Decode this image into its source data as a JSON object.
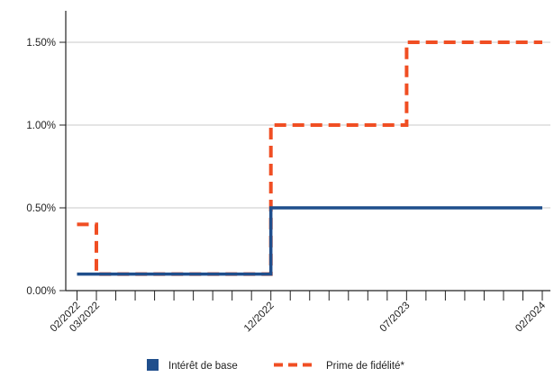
{
  "chart_data": {
    "type": "line",
    "y_unit": "%",
    "ylim": [
      0,
      1.65
    ],
    "y_ticks": [
      {
        "value": 0.0,
        "label": "0.00%"
      },
      {
        "value": 0.5,
        "label": "0.50%"
      },
      {
        "value": 1.0,
        "label": "1.00%"
      },
      {
        "value": 1.5,
        "label": "1.50%"
      }
    ],
    "x_range": [
      "2022-02",
      "2024-02"
    ],
    "x_tick_labels": [
      "02/2022",
      "03/2022",
      "12/2022",
      "07/2023",
      "02/2024"
    ],
    "grid": "horizontal",
    "series": [
      {
        "name": "Intérêt de base",
        "color": "#1f4e8c",
        "style": "solid",
        "step": true,
        "points": [
          {
            "x": "2022-02",
            "y": 0.1
          },
          {
            "x": "2022-12",
            "y": 0.1
          },
          {
            "x": "2022-12",
            "y": 0.5
          },
          {
            "x": "2024-02",
            "y": 0.5
          }
        ]
      },
      {
        "name": "Prime de fidélité*",
        "color": "#f04e23",
        "style": "dashed",
        "step": true,
        "points": [
          {
            "x": "2022-02",
            "y": 0.4
          },
          {
            "x": "2022-03",
            "y": 0.4
          },
          {
            "x": "2022-03",
            "y": 0.1
          },
          {
            "x": "2022-12",
            "y": 0.1
          },
          {
            "x": "2022-12",
            "y": 1.0
          },
          {
            "x": "2023-07",
            "y": 1.0
          },
          {
            "x": "2023-07",
            "y": 1.5
          },
          {
            "x": "2024-02",
            "y": 1.5
          }
        ]
      }
    ],
    "legend": {
      "position": "bottom"
    }
  }
}
